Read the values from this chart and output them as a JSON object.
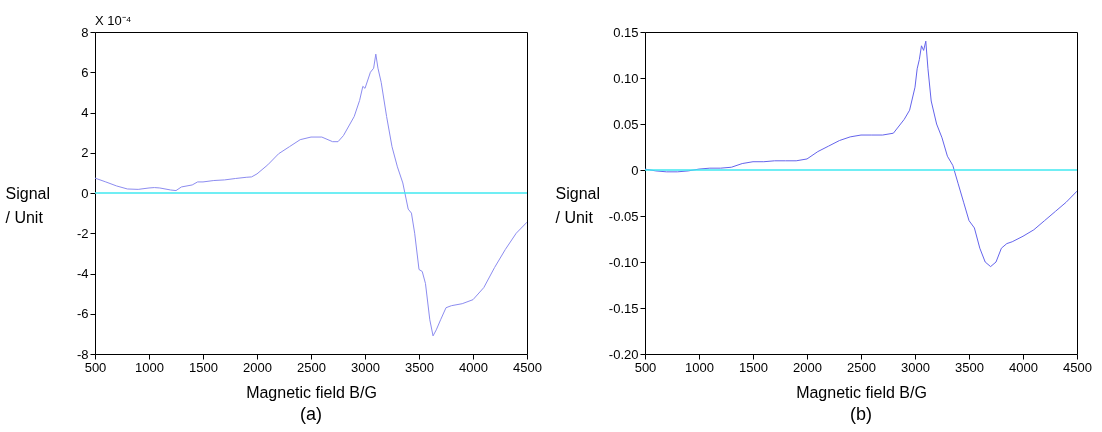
{
  "chart_data": [
    {
      "type": "line",
      "title": "(a)",
      "xlabel": "Magnetic field B/G",
      "ylabel": "Signal / Unit",
      "annotations": [
        "X 10⁻⁴"
      ],
      "x": [
        500,
        600,
        700,
        800,
        900,
        1000,
        1050,
        1100,
        1200,
        1250,
        1300,
        1400,
        1450,
        1500,
        1600,
        1700,
        1800,
        1900,
        1950,
        2000,
        2100,
        2200,
        2300,
        2400,
        2500,
        2600,
        2700,
        2750,
        2800,
        2900,
        2950,
        2980,
        3000,
        3050,
        3080,
        3100,
        3120,
        3150,
        3200,
        3250,
        3300,
        3350,
        3400,
        3430,
        3460,
        3500,
        3530,
        3560,
        3600,
        3630,
        3660,
        3700,
        3750,
        3800,
        3900,
        4000,
        4100,
        4200,
        4300,
        4400,
        4500
      ],
      "series": [
        {
          "color": "#8c8cf0",
          "values": [
            0.74,
            0.55,
            0.35,
            0.2,
            0.18,
            0.25,
            0.27,
            0.25,
            0.15,
            0.12,
            0.3,
            0.4,
            0.55,
            0.55,
            0.62,
            0.65,
            0.72,
            0.78,
            0.8,
            0.95,
            1.4,
            1.95,
            2.3,
            2.65,
            2.78,
            2.78,
            2.55,
            2.55,
            2.85,
            3.8,
            4.6,
            5.3,
            5.2,
            6.0,
            6.2,
            6.9,
            6.2,
            5.5,
            3.8,
            2.3,
            1.3,
            0.5,
            -0.8,
            -1.0,
            -2.0,
            -3.8,
            -3.9,
            -4.5,
            -6.3,
            -7.1,
            -6.8,
            -6.3,
            -5.7,
            -5.6,
            -5.5,
            -5.3,
            -4.7,
            -3.7,
            -2.8,
            -2.0,
            -1.45
          ]
        }
      ],
      "xlim": [
        500,
        4500
      ],
      "xticks": [
        500,
        1000,
        1500,
        2000,
        2500,
        3000,
        3500,
        4000,
        4500
      ],
      "ylim": [
        -8,
        8
      ],
      "yticks": [
        -8,
        -6,
        -4,
        -2,
        0,
        2,
        4,
        6,
        8
      ],
      "ref_lines": [
        {
          "axis": "y",
          "value": 0,
          "color": "#40e8f0"
        }
      ],
      "grid": false
    },
    {
      "type": "line",
      "title": "(b)",
      "xlabel": "Magnetic field B/G",
      "ylabel": "Signal / Unit",
      "x": [
        500,
        600,
        700,
        800,
        900,
        1000,
        1100,
        1200,
        1300,
        1400,
        1500,
        1600,
        1700,
        1800,
        1900,
        2000,
        2100,
        2200,
        2300,
        2400,
        2500,
        2600,
        2700,
        2800,
        2900,
        2950,
        3000,
        3020,
        3040,
        3060,
        3080,
        3100,
        3120,
        3150,
        3200,
        3250,
        3300,
        3350,
        3400,
        3450,
        3500,
        3550,
        3600,
        3650,
        3700,
        3750,
        3800,
        3850,
        3900,
        4000,
        4100,
        4200,
        4300,
        4400,
        4500
      ],
      "series": [
        {
          "color": "#6464ec",
          "values": [
            0.001,
            -0.001,
            -0.002,
            -0.002,
            -0.001,
            0.001,
            0.002,
            0.002,
            0.003,
            0.007,
            0.009,
            0.009,
            0.01,
            0.01,
            0.01,
            0.012,
            0.02,
            0.026,
            0.032,
            0.036,
            0.038,
            0.038,
            0.038,
            0.04,
            0.055,
            0.065,
            0.09,
            0.11,
            0.12,
            0.135,
            0.13,
            0.14,
            0.11,
            0.075,
            0.05,
            0.035,
            0.015,
            0.005,
            -0.015,
            -0.035,
            -0.055,
            -0.063,
            -0.085,
            -0.1,
            -0.105,
            -0.1,
            -0.085,
            -0.08,
            -0.078,
            -0.072,
            -0.065,
            -0.055,
            -0.045,
            -0.035,
            -0.023
          ]
        }
      ],
      "xlim": [
        500,
        4500
      ],
      "xticks": [
        500,
        1000,
        1500,
        2000,
        2500,
        3000,
        3500,
        4000,
        4500
      ],
      "ylim": [
        -0.2,
        0.15
      ],
      "yticks": [
        {
          "value": -0.2,
          "label": "-0.20"
        },
        {
          "value": -0.15,
          "label": "-0.15"
        },
        {
          "value": -0.1,
          "label": "-0.10"
        },
        {
          "value": -0.05,
          "label": "-0.05"
        },
        0,
        {
          "value": 0.05,
          "label": "0.05"
        },
        {
          "value": 0.1,
          "label": "0.10"
        },
        {
          "value": 0.15,
          "label": "0.15"
        }
      ],
      "ref_lines": [
        {
          "axis": "y",
          "value": 0,
          "color": "#40e8f0"
        }
      ],
      "grid": false
    }
  ]
}
